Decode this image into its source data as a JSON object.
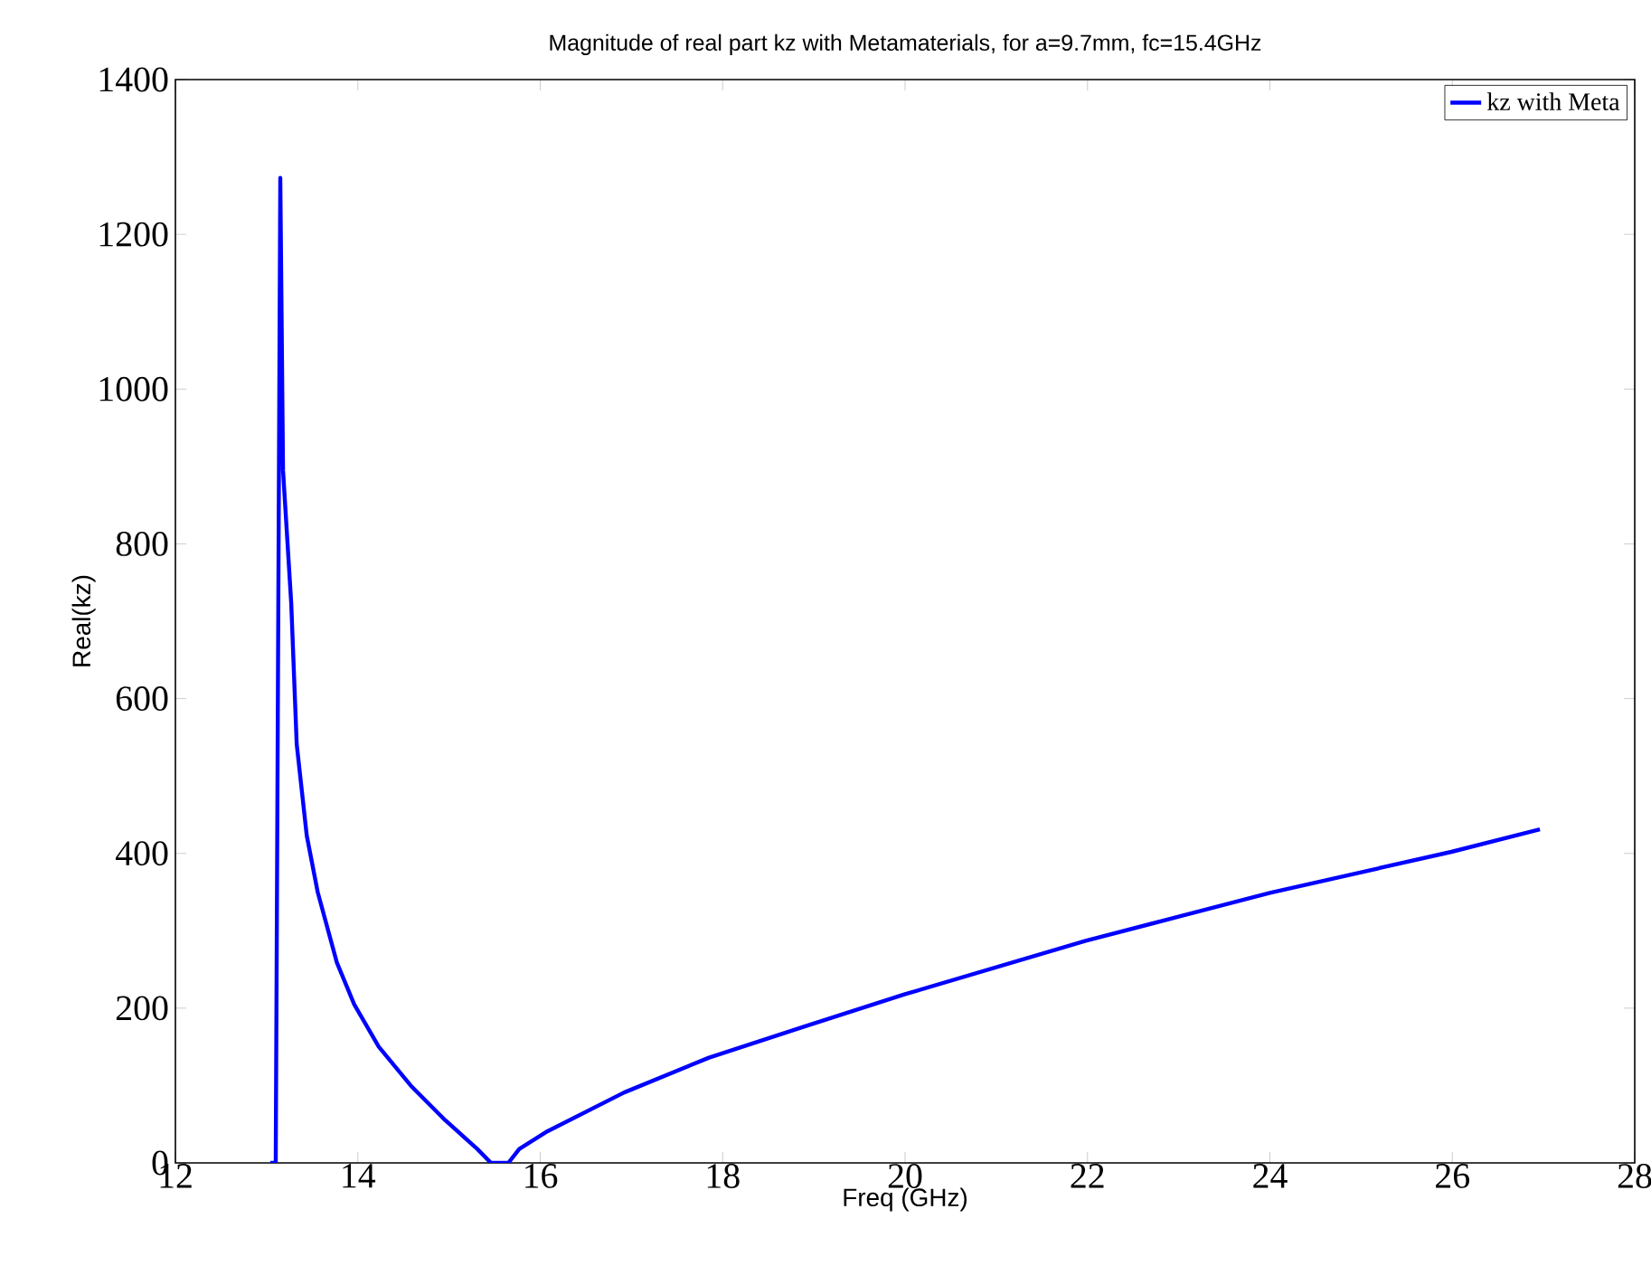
{
  "chart_data": {
    "type": "line",
    "title": "Magnitude of real part kz with Metamaterials, for a=9.7mm, fc=15.4GHz",
    "xlabel": "Freq (GHz)",
    "ylabel": "Real(kz)",
    "xlim": [
      12,
      28
    ],
    "ylim": [
      0,
      1400
    ],
    "xticks": [
      12,
      14,
      16,
      18,
      20,
      22,
      24,
      26,
      28
    ],
    "yticks": [
      0,
      200,
      400,
      600,
      800,
      1000,
      1200,
      1400
    ],
    "legend": "top right",
    "grid": false,
    "series": [
      {
        "name": "kz with Meta",
        "color": "#0000ff",
        "x": [
          13.04,
          13.1,
          13.15,
          13.18,
          13.27,
          13.33,
          13.44,
          13.56,
          13.77,
          13.96,
          14.23,
          14.58,
          14.96,
          15.31,
          15.46,
          15.65,
          15.77,
          16.08,
          16.92,
          17.85,
          18.89,
          20.0,
          21.98,
          24.0,
          25.99,
          26.96
        ],
        "values": [
          0,
          0,
          1273,
          895,
          723,
          541,
          423,
          350,
          259,
          205,
          150,
          100,
          55,
          18,
          0,
          0,
          18,
          41,
          91,
          136,
          176,
          218,
          287,
          349,
          402,
          431
        ]
      }
    ]
  }
}
